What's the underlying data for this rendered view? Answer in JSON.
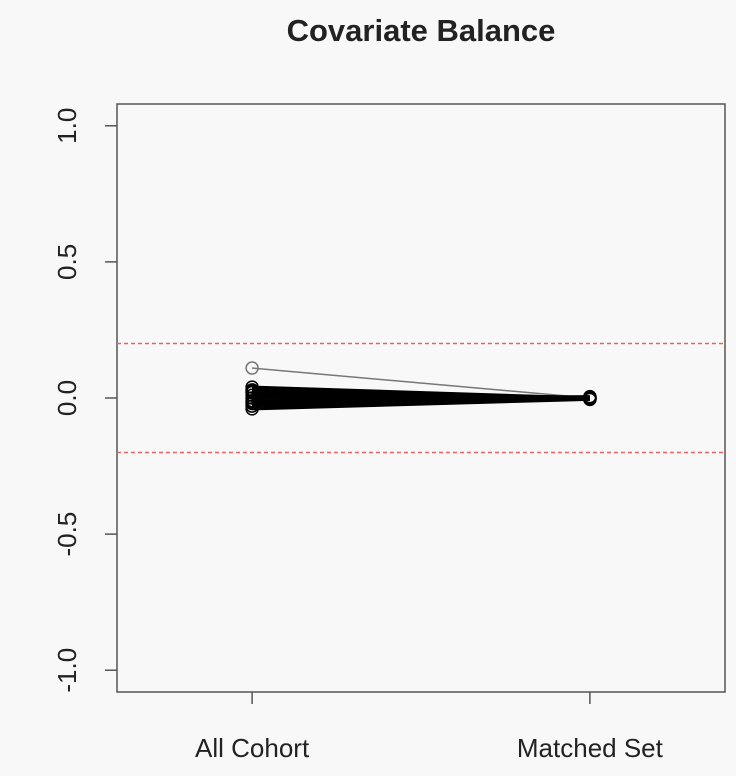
{
  "chart_data": {
    "type": "line",
    "title": "Covariate Balance",
    "categories": [
      "All Cohort",
      "Matched Set"
    ],
    "series": [
      {
        "color": "#777777",
        "values": [
          0.11,
          0.0
        ]
      },
      {
        "color": "#000000",
        "values": [
          0.04,
          0.0
        ]
      },
      {
        "color": "#000000",
        "values": [
          0.03,
          0.0
        ]
      },
      {
        "color": "#000000",
        "values": [
          0.025,
          0.002
        ]
      },
      {
        "color": "#000000",
        "values": [
          0.02,
          -0.005
        ]
      },
      {
        "color": "#000000",
        "values": [
          0.01,
          0.0
        ]
      },
      {
        "color": "#000000",
        "values": [
          0.0,
          0.005
        ]
      },
      {
        "color": "#000000",
        "values": [
          -0.01,
          0.0
        ]
      },
      {
        "color": "#000000",
        "values": [
          -0.015,
          0.003
        ]
      },
      {
        "color": "#000000",
        "values": [
          -0.02,
          -0.003
        ]
      },
      {
        "color": "#000000",
        "values": [
          -0.03,
          0.0
        ]
      },
      {
        "color": "#000000",
        "values": [
          -0.04,
          -0.005
        ]
      }
    ],
    "reference_lines": {
      "color": "#e06666",
      "values": [
        0.2,
        -0.2
      ]
    },
    "ylim": [
      -1.08,
      1.08
    ],
    "yticks": [
      {
        "value": -1,
        "label": "-1.0"
      },
      -0.5,
      {
        "value": 0,
        "label": "0.0"
      },
      0.5,
      {
        "value": 1,
        "label": "1.0"
      }
    ]
  }
}
